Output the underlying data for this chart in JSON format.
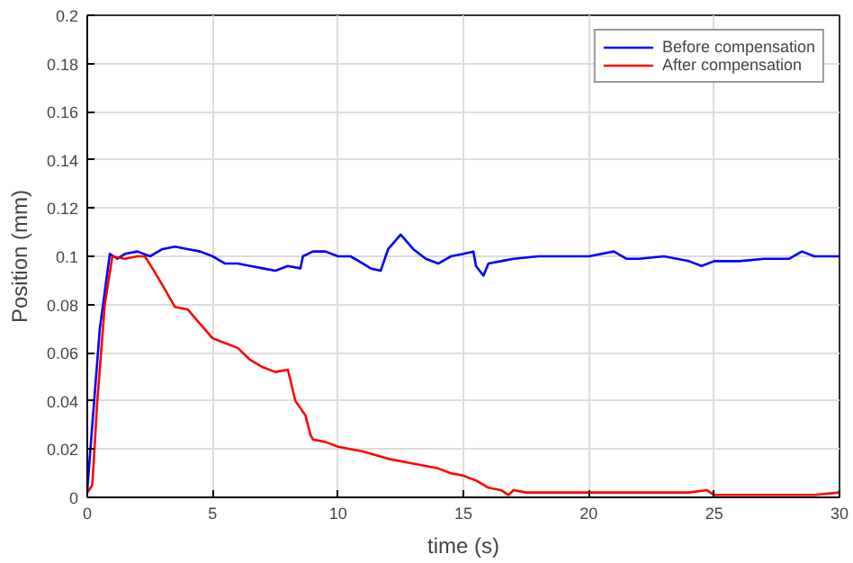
{
  "chart_data": {
    "type": "line",
    "xlabel": "time (s)",
    "ylabel": "Position (mm)",
    "xlim": [
      0,
      30
    ],
    "ylim": [
      0,
      0.2
    ],
    "xticks": [
      0,
      5,
      10,
      15,
      20,
      25,
      30
    ],
    "yticks": [
      0,
      0.02,
      0.04,
      0.06,
      0.08,
      0.1,
      0.12,
      0.14,
      0.16,
      0.18,
      0.2
    ],
    "grid": true,
    "legend": "top right",
    "line_style": "solid",
    "marker": "none",
    "series": [
      {
        "name": "Before compensation",
        "color": "#0000ff",
        "x": [
          0,
          0.2,
          0.5,
          0.9,
          1.2,
          1.5,
          2,
          2.5,
          3,
          3.5,
          4,
          4.5,
          5,
          5.5,
          6,
          6.5,
          7,
          7.5,
          8,
          8.5,
          8.6,
          9,
          9.5,
          10,
          10.5,
          11,
          11.3,
          11.7,
          12,
          12.5,
          13,
          13.5,
          14,
          14.5,
          15,
          15.4,
          15.5,
          15.8,
          16,
          16.5,
          17,
          18,
          19,
          20,
          21,
          21.5,
          22,
          23,
          24,
          24.5,
          25,
          26,
          27,
          28,
          28.5,
          29,
          29.5,
          30
        ],
        "values": [
          0.003,
          0.03,
          0.07,
          0.101,
          0.099,
          0.101,
          0.102,
          0.1,
          0.103,
          0.104,
          0.103,
          0.102,
          0.1,
          0.097,
          0.097,
          0.096,
          0.095,
          0.094,
          0.096,
          0.095,
          0.1,
          0.102,
          0.102,
          0.1,
          0.1,
          0.097,
          0.095,
          0.094,
          0.103,
          0.109,
          0.103,
          0.099,
          0.097,
          0.1,
          0.101,
          0.102,
          0.096,
          0.092,
          0.097,
          0.098,
          0.099,
          0.1,
          0.1,
          0.1,
          0.102,
          0.099,
          0.099,
          0.1,
          0.098,
          0.096,
          0.098,
          0.098,
          0.099,
          0.099,
          0.102,
          0.1,
          0.1,
          0.1
        ]
      },
      {
        "name": "After compensation",
        "color": "#ff0000",
        "x": [
          0,
          0.2,
          0.4,
          0.7,
          1,
          1.5,
          2,
          2.3,
          2.6,
          3,
          3.5,
          4,
          4.5,
          5,
          5.5,
          6,
          6.5,
          7,
          7.5,
          8,
          8.3,
          8.7,
          8.9,
          9,
          9.5,
          10,
          11,
          12,
          13,
          14,
          14.5,
          15,
          15.5,
          16,
          16.5,
          16.8,
          17,
          17.5,
          18,
          20,
          22,
          24,
          24.7,
          25,
          26,
          28,
          29,
          30
        ],
        "values": [
          0.002,
          0.005,
          0.04,
          0.08,
          0.1,
          0.099,
          0.1,
          0.1,
          0.095,
          0.088,
          0.079,
          0.078,
          0.072,
          0.066,
          0.064,
          0.062,
          0.057,
          0.054,
          0.052,
          0.053,
          0.04,
          0.034,
          0.026,
          0.024,
          0.023,
          0.021,
          0.019,
          0.016,
          0.014,
          0.012,
          0.01,
          0.009,
          0.007,
          0.004,
          0.003,
          0.001,
          0.003,
          0.002,
          0.002,
          0.002,
          0.002,
          0.002,
          0.003,
          0.001,
          0.001,
          0.001,
          0.001,
          0.002
        ]
      }
    ]
  }
}
